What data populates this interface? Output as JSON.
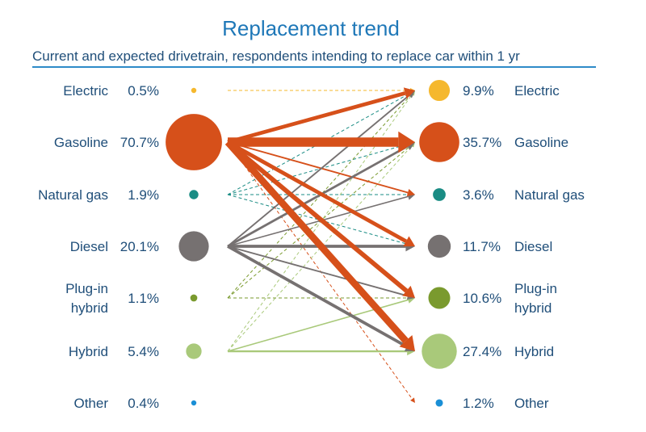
{
  "chart_data": {
    "type": "flow",
    "title": "Replacement trend",
    "subtitle": "Current and expected drivetrain, respondents intending to replace car within 1 yr",
    "colors": {
      "Electric": "#f5b82e",
      "Gasoline": "#d6501a",
      "Natural gas": "#1a8c84",
      "Diesel": "#767171",
      "Plug-in hybrid": "#7a9a2e",
      "Hybrid": "#a9c97a",
      "Other": "#1a8fd6"
    },
    "current": [
      {
        "name": "Electric",
        "label": [
          "Electric"
        ],
        "value_label": "0.5%",
        "value": 0.5
      },
      {
        "name": "Gasoline",
        "label": [
          "Gasoline"
        ],
        "value_label": "70.7%",
        "value": 70.7
      },
      {
        "name": "Natural gas",
        "label": [
          "Natural gas"
        ],
        "value_label": "1.9%",
        "value": 1.9
      },
      {
        "name": "Diesel",
        "label": [
          "Diesel"
        ],
        "value_label": "20.1%",
        "value": 20.1
      },
      {
        "name": "Plug-in hybrid",
        "label": [
          "Plug-in",
          "hybrid"
        ],
        "value_label": "1.1%",
        "value": 1.1
      },
      {
        "name": "Hybrid",
        "label": [
          "Hybrid"
        ],
        "value_label": "5.4%",
        "value": 5.4
      },
      {
        "name": "Other",
        "label": [
          "Other"
        ],
        "value_label": "0.4%",
        "value": 0.4
      }
    ],
    "expected": [
      {
        "name": "Electric",
        "label": [
          "Electric"
        ],
        "value_label": "9.9%",
        "value": 9.9
      },
      {
        "name": "Gasoline",
        "label": [
          "Gasoline"
        ],
        "value_label": "35.7%",
        "value": 35.7
      },
      {
        "name": "Natural gas",
        "label": [
          "Natural gas"
        ],
        "value_label": "3.6%",
        "value": 3.6
      },
      {
        "name": "Diesel",
        "label": [
          "Diesel"
        ],
        "value_label": "11.7%",
        "value": 11.7
      },
      {
        "name": "Plug-in hybrid",
        "label": [
          "Plug-in",
          "hybrid"
        ],
        "value_label": "10.6%",
        "value": 10.6
      },
      {
        "name": "Hybrid",
        "label": [
          "Hybrid"
        ],
        "value_label": "27.4%",
        "value": 27.4
      },
      {
        "name": "Other",
        "label": [
          "Other"
        ],
        "value_label": "1.2%",
        "value": 1.2
      }
    ],
    "flows": [
      {
        "from": "Electric",
        "to": "Electric",
        "weight": 0.5,
        "style": "dashed"
      },
      {
        "from": "Gasoline",
        "to": "Electric",
        "weight": 5,
        "style": "solid"
      },
      {
        "from": "Gasoline",
        "to": "Gasoline",
        "weight": 12,
        "style": "solid"
      },
      {
        "from": "Gasoline",
        "to": "Natural gas",
        "weight": 2,
        "style": "solid"
      },
      {
        "from": "Gasoline",
        "to": "Diesel",
        "weight": 5,
        "style": "solid"
      },
      {
        "from": "Gasoline",
        "to": "Plug-in hybrid",
        "weight": 6,
        "style": "solid"
      },
      {
        "from": "Gasoline",
        "to": "Hybrid",
        "weight": 9,
        "style": "solid"
      },
      {
        "from": "Gasoline",
        "to": "Other",
        "weight": 0.5,
        "style": "dashed"
      },
      {
        "from": "Natural gas",
        "to": "Electric",
        "weight": 0.5,
        "style": "dashed"
      },
      {
        "from": "Natural gas",
        "to": "Gasoline",
        "weight": 0.5,
        "style": "dashed"
      },
      {
        "from": "Natural gas",
        "to": "Natural gas",
        "weight": 0.5,
        "style": "dashed"
      },
      {
        "from": "Natural gas",
        "to": "Diesel",
        "weight": 0.5,
        "style": "dashed"
      },
      {
        "from": "Diesel",
        "to": "Electric",
        "weight": 2,
        "style": "solid"
      },
      {
        "from": "Diesel",
        "to": "Gasoline",
        "weight": 3,
        "style": "solid"
      },
      {
        "from": "Diesel",
        "to": "Natural gas",
        "weight": 1.5,
        "style": "solid"
      },
      {
        "from": "Diesel",
        "to": "Diesel",
        "weight": 4,
        "style": "solid"
      },
      {
        "from": "Diesel",
        "to": "Plug-in hybrid",
        "weight": 2,
        "style": "solid"
      },
      {
        "from": "Diesel",
        "to": "Hybrid",
        "weight": 4,
        "style": "solid"
      },
      {
        "from": "Plug-in hybrid",
        "to": "Electric",
        "weight": 0.5,
        "style": "dashed"
      },
      {
        "from": "Plug-in hybrid",
        "to": "Gasoline",
        "weight": 0.5,
        "style": "dashed"
      },
      {
        "from": "Plug-in hybrid",
        "to": "Plug-in hybrid",
        "weight": 0.5,
        "style": "dashed"
      },
      {
        "from": "Hybrid",
        "to": "Electric",
        "weight": 0.5,
        "style": "dashed"
      },
      {
        "from": "Hybrid",
        "to": "Gasoline",
        "weight": 0.5,
        "style": "dashed"
      },
      {
        "from": "Hybrid",
        "to": "Plug-in hybrid",
        "weight": 1.5,
        "style": "solid"
      },
      {
        "from": "Hybrid",
        "to": "Hybrid",
        "weight": 2.5,
        "style": "solid"
      }
    ]
  }
}
